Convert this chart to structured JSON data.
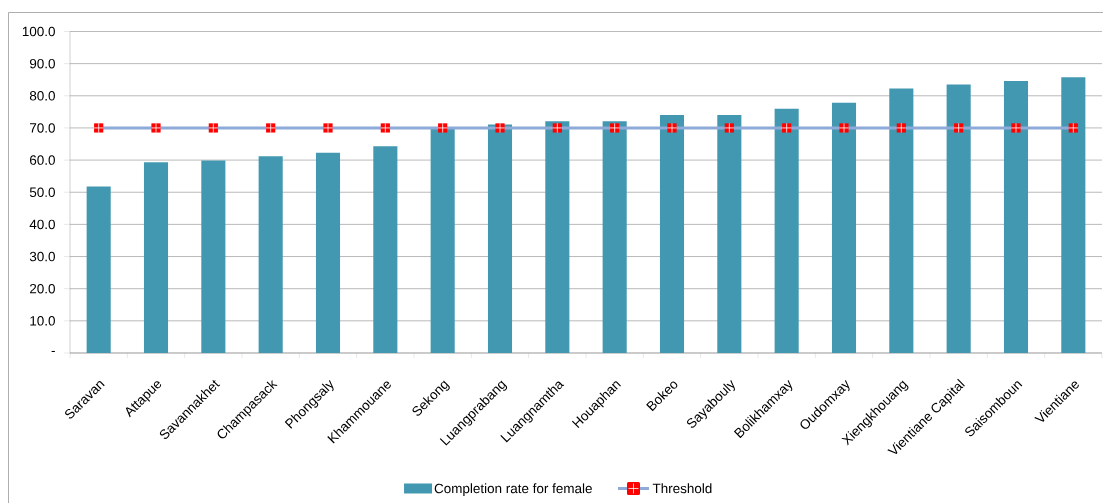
{
  "chart_data": {
    "type": "bar",
    "categories": [
      "Saravan",
      "Attapue",
      "Savannakhet",
      "Champasack",
      "Phongsaly",
      "Khammouane",
      "Sekong",
      "Luangprabang",
      "Luangnamtha",
      "Houaphan",
      "Bokeo",
      "Sayabouly",
      "Bolikhamxay",
      "Oudomxay",
      "Xiengkhouang",
      "Vientiane Capital",
      "Saisomboun",
      "Vientiane"
    ],
    "series": [
      {
        "name": "Completion rate for female",
        "color": "#4298b0",
        "values": [
          51.8,
          59.3,
          59.9,
          61.2,
          62.3,
          64.3,
          69.8,
          71.1,
          72.1,
          72.1,
          74.0,
          74.0,
          76.0,
          77.8,
          82.3,
          83.5,
          84.6,
          85.8
        ]
      },
      {
        "name": "Threshold",
        "type": "line",
        "color": "#8eaad8",
        "marker": "square",
        "line_style": "solid",
        "values": [
          70,
          70,
          70,
          70,
          70,
          70,
          70,
          70,
          70,
          70,
          70,
          70,
          70,
          70,
          70,
          70,
          70,
          70
        ],
        "colors": [
          "#ff0000",
          "#ff0000",
          "#ff0000",
          "#ff0000",
          "#ff0000",
          "#ff0000",
          "#ff0000",
          "#ff0000",
          "#ff0000",
          "#ff0000",
          "#ff0000",
          "#ff0000",
          "#ff0000",
          "#ff0000",
          "#ff0000",
          "#ff0000",
          "#ff0000",
          "#ff0000"
        ]
      }
    ],
    "ylim": [
      0,
      100
    ],
    "yticks": [
      {
        "value": 0,
        "label": "-"
      },
      {
        "value": 10,
        "label": "10.0"
      },
      {
        "value": 20,
        "label": "20.0"
      },
      {
        "value": 30,
        "label": "30.0"
      },
      {
        "value": 40,
        "label": "40.0"
      },
      {
        "value": 50,
        "label": "50.0"
      },
      {
        "value": 60,
        "label": "60.0"
      },
      {
        "value": 70,
        "label": "70.0"
      },
      {
        "value": 80,
        "label": "80.0"
      },
      {
        "value": 90,
        "label": "90.0"
      },
      {
        "value": 100,
        "label": "100.0"
      }
    ],
    "grid": "y",
    "legend": "bottom"
  }
}
